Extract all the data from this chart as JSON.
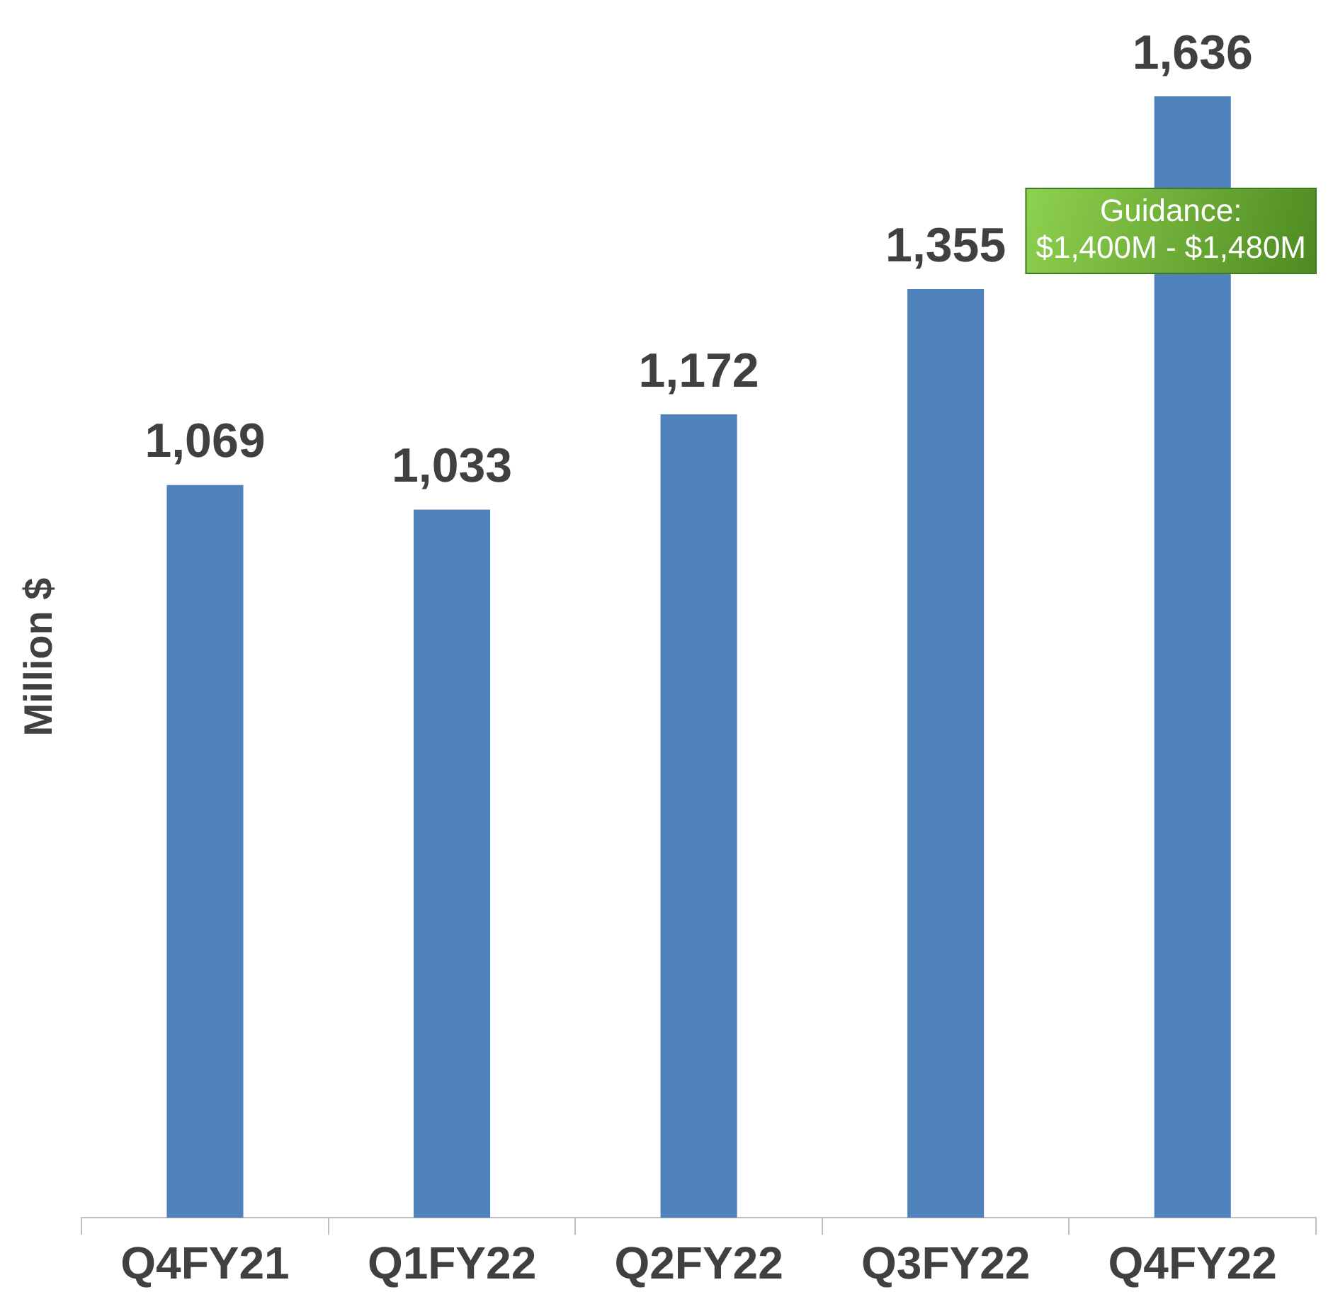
{
  "chart_data": {
    "type": "bar",
    "ylabel": "Million $",
    "categories": [
      "Q4FY21",
      "Q1FY22",
      "Q2FY22",
      "Q3FY22",
      "Q4FY22"
    ],
    "values": [
      1069,
      1033,
      1172,
      1355,
      1636
    ],
    "value_labels": [
      "1,069",
      "1,033",
      "1,172",
      "1,355",
      "1,636"
    ],
    "color": "#4f81bd",
    "grid": false,
    "legend": false,
    "annotations": [
      "Guidance:\n$1,400M - $1,480M"
    ]
  }
}
